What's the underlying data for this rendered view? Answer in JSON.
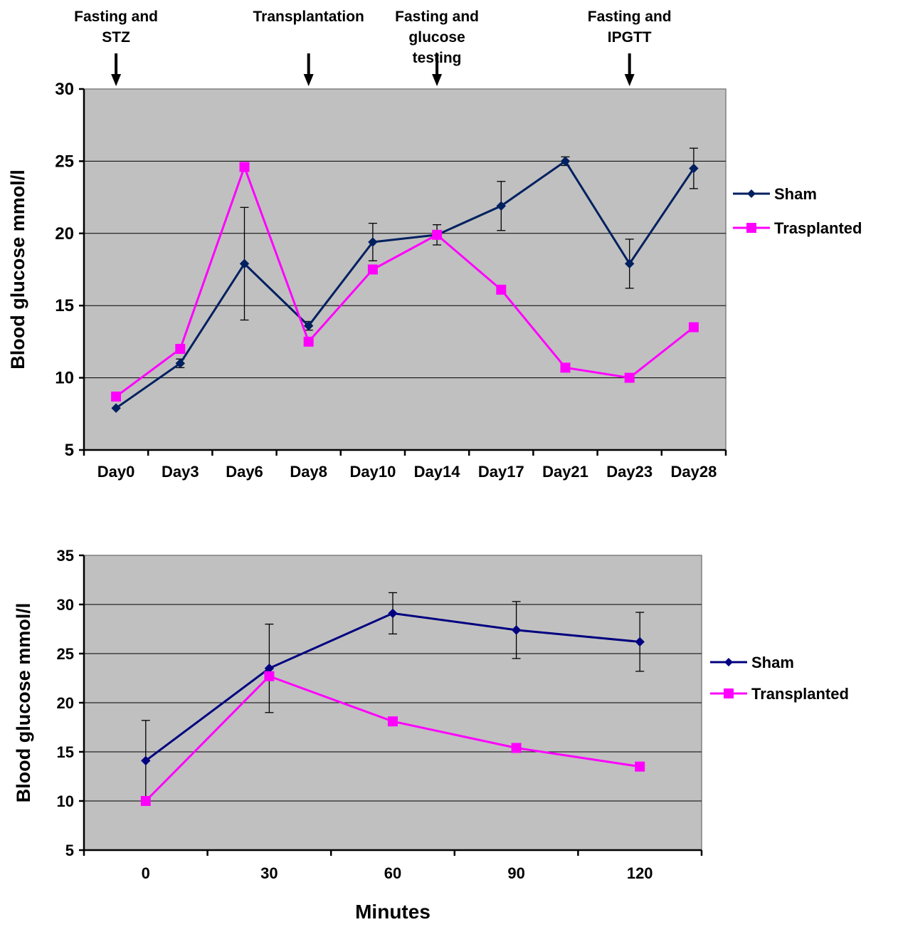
{
  "chart_data": [
    {
      "type": "line",
      "title": "",
      "xlabel": "",
      "ylabel": "Blood glucose mmol/l",
      "categories": [
        "Day0",
        "Day3",
        "Day6",
        "Day8",
        "Day10",
        "Day14",
        "Day17",
        "Day21",
        "Day23",
        "Day28"
      ],
      "ylim": [
        5,
        30
      ],
      "yticks": [
        5,
        10,
        15,
        20,
        25,
        30
      ],
      "grid": true,
      "legend_position": "right",
      "series": [
        {
          "name": "Sham",
          "color": "#002060",
          "marker": "diamond",
          "values": [
            7.9,
            11.0,
            17.9,
            13.6,
            19.4,
            19.9,
            21.9,
            25.0,
            17.9,
            24.5
          ],
          "errors": [
            0,
            0.3,
            3.9,
            0.3,
            1.3,
            0.7,
            1.7,
            0.3,
            1.7,
            1.4
          ]
        },
        {
          "name": "Trasplanted",
          "color": "#ff00ff",
          "marker": "square",
          "values": [
            8.7,
            12.0,
            24.6,
            12.5,
            17.5,
            19.9,
            16.1,
            10.7,
            10.0,
            13.5
          ]
        }
      ],
      "annotations": [
        {
          "lines": [
            "Fasting and",
            "STZ"
          ],
          "category_index": 0
        },
        {
          "lines": [
            "Transplantation"
          ],
          "category_index": 3
        },
        {
          "lines": [
            "Fasting and",
            "glucose",
            "testing"
          ],
          "category_index": 5
        },
        {
          "lines": [
            "Fasting and",
            "IPGTT"
          ],
          "category_index": 8
        }
      ]
    },
    {
      "type": "line",
      "title": "",
      "xlabel": "Minutes",
      "ylabel": "Blood glucose mmol/l",
      "categories": [
        "0",
        "30",
        "60",
        "90",
        "120"
      ],
      "ylim": [
        5,
        35
      ],
      "yticks": [
        5,
        10,
        15,
        20,
        25,
        30,
        35
      ],
      "grid": true,
      "legend_position": "right",
      "series": [
        {
          "name": "Sham",
          "color": "#000080",
          "marker": "diamond",
          "values": [
            14.1,
            23.5,
            29.1,
            27.4,
            26.2
          ],
          "errors": [
            4.1,
            4.5,
            2.1,
            2.9,
            3.0
          ]
        },
        {
          "name": "Transplanted",
          "color": "#ff00ff",
          "marker": "square",
          "values": [
            10.0,
            22.7,
            18.1,
            15.4,
            13.5
          ]
        }
      ]
    }
  ]
}
